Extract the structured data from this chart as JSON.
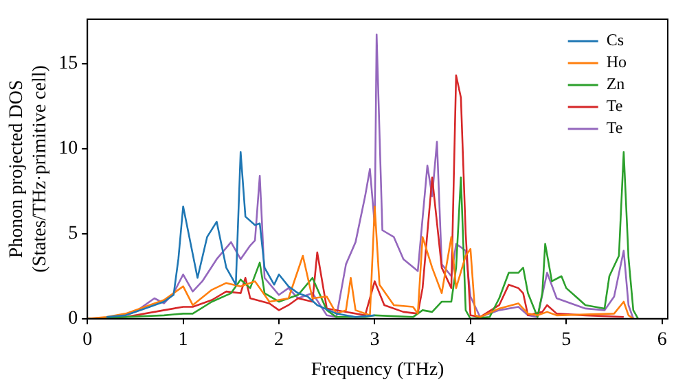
{
  "chart_data": {
    "type": "line",
    "xlabel": "Frequency (THz)",
    "ylabel": "Phonon projected DOS\n(States/THz·primitive cell)",
    "xlim": [
      0,
      6.06
    ],
    "ylim": [
      0,
      17.6
    ],
    "xticks": [
      0,
      1,
      2,
      3,
      4,
      5,
      6
    ],
    "yticks": [
      0,
      5,
      10,
      15
    ],
    "grid": false,
    "legend": "top right",
    "marker": "none",
    "line_style": "solid",
    "series": [
      {
        "name": "Cs",
        "color": "#1f77b4",
        "x": [
          0.2,
          0.4,
          0.6,
          0.8,
          0.9,
          0.95,
          1.0,
          1.05,
          1.15,
          1.25,
          1.35,
          1.45,
          1.55,
          1.6,
          1.65,
          1.75,
          1.8,
          1.85,
          1.95,
          2.0,
          2.1,
          2.2,
          2.3,
          2.4,
          2.6,
          2.8,
          3.0
        ],
        "values": [
          0.1,
          0.2,
          0.6,
          1.0,
          1.4,
          3.5,
          6.6,
          5.2,
          2.4,
          4.8,
          5.7,
          3.0,
          2.0,
          9.8,
          6.0,
          5.5,
          5.6,
          3.0,
          2.0,
          2.6,
          1.9,
          1.5,
          1.3,
          0.8,
          0.3,
          0.1,
          0.2
        ]
      },
      {
        "name": "Ho",
        "color": "#ff7f0e",
        "x": [
          0,
          0.2,
          0.4,
          0.6,
          0.8,
          1.0,
          1.1,
          1.3,
          1.45,
          1.6,
          1.75,
          1.9,
          2.1,
          2.25,
          2.35,
          2.5,
          2.6,
          2.7,
          2.75,
          2.8,
          2.95,
          3.0,
          3.05,
          3.2,
          3.4,
          3.45,
          3.5,
          3.6,
          3.7,
          3.8,
          3.85,
          3.95,
          4.0,
          4.05,
          4.1,
          4.3,
          4.5,
          4.6,
          4.7,
          4.8,
          4.9,
          5.5,
          5.6,
          5.65,
          5.7
        ],
        "values": [
          0,
          0.1,
          0.3,
          0.7,
          1.1,
          1.9,
          0.8,
          1.7,
          2.1,
          1.9,
          2.2,
          1.0,
          1.2,
          3.7,
          1.2,
          1.3,
          0.3,
          0.5,
          2.4,
          0.5,
          0.2,
          6.6,
          2.0,
          0.8,
          0.7,
          0.3,
          4.8,
          3.0,
          1.5,
          4.8,
          1.8,
          3.7,
          4.1,
          0.2,
          0.1,
          0.6,
          0.9,
          0.3,
          0.2,
          0.4,
          0.2,
          0.3,
          1.0,
          0.2,
          0
        ]
      },
      {
        "name": "Zn",
        "color": "#2ca02c",
        "x": [
          0,
          0.4,
          0.8,
          1.0,
          1.1,
          1.3,
          1.5,
          1.6,
          1.7,
          1.8,
          1.85,
          2.0,
          2.2,
          2.35,
          2.5,
          2.6,
          2.9,
          3.0,
          3.4,
          3.5,
          3.6,
          3.7,
          3.8,
          3.85,
          3.9,
          3.95,
          4.0,
          4.2,
          4.3,
          4.4,
          4.5,
          4.55,
          4.6,
          4.7,
          4.75,
          4.78,
          4.85,
          4.95,
          5.0,
          5.1,
          5.2,
          5.3,
          5.4,
          5.45,
          5.55,
          5.6,
          5.65,
          5.7,
          5.75
        ],
        "values": [
          0,
          0.1,
          0.2,
          0.3,
          0.3,
          1.0,
          1.5,
          2.3,
          1.8,
          3.3,
          1.5,
          1.0,
          1.4,
          2.4,
          0.5,
          0.1,
          0.1,
          0.2,
          0.1,
          0.5,
          0.4,
          1.0,
          1.0,
          3.0,
          8.3,
          0.5,
          0,
          0.1,
          1.2,
          2.7,
          2.7,
          3.0,
          1.5,
          0.1,
          1.5,
          4.4,
          2.2,
          2.5,
          1.8,
          1.3,
          0.8,
          0.7,
          0.6,
          2.5,
          3.7,
          9.8,
          3.6,
          0.5,
          0
        ]
      },
      {
        "name": "Te",
        "color": "#d62728",
        "x": [
          0,
          0.4,
          0.8,
          1.0,
          1.1,
          1.3,
          1.45,
          1.6,
          1.65,
          1.7,
          1.9,
          2.0,
          2.1,
          2.2,
          2.35,
          2.4,
          2.5,
          2.9,
          3.0,
          3.1,
          3.3,
          3.45,
          3.5,
          3.6,
          3.7,
          3.8,
          3.85,
          3.9,
          3.95,
          4.0,
          4.1,
          4.3,
          4.4,
          4.5,
          4.55,
          4.6,
          4.75,
          4.8,
          4.9,
          5.2,
          5.6
        ],
        "values": [
          0,
          0.1,
          0.5,
          0.7,
          0.7,
          1.1,
          1.6,
          1.5,
          2.4,
          1.2,
          0.9,
          0.5,
          0.8,
          1.2,
          1.0,
          3.9,
          0.6,
          0.2,
          2.2,
          0.8,
          0.4,
          0.3,
          1.8,
          8.3,
          3.0,
          1.8,
          14.3,
          13.0,
          5.0,
          0.2,
          0.1,
          0.8,
          2.0,
          1.8,
          1.5,
          0.2,
          0.4,
          0.8,
          0.3,
          0.2,
          0.1
        ]
      },
      {
        "name": "Te",
        "color": "#9467bd",
        "x": [
          0,
          0.3,
          0.5,
          0.7,
          0.8,
          0.9,
          1.0,
          1.1,
          1.2,
          1.35,
          1.5,
          1.6,
          1.7,
          1.75,
          1.8,
          1.85,
          2.0,
          2.1,
          2.2,
          2.35,
          2.5,
          2.6,
          2.7,
          2.8,
          2.9,
          2.95,
          3.0,
          3.02,
          3.08,
          3.2,
          3.3,
          3.45,
          3.55,
          3.6,
          3.65,
          3.7,
          3.8,
          3.85,
          3.95,
          4.0,
          4.1,
          4.3,
          4.5,
          4.6,
          4.7,
          4.8,
          4.9,
          5.0,
          5.2,
          5.4,
          5.5,
          5.6,
          5.65,
          5.7
        ],
        "values": [
          0,
          0.1,
          0.4,
          1.2,
          0.9,
          1.5,
          2.6,
          1.6,
          2.2,
          3.5,
          4.5,
          3.5,
          4.3,
          4.6,
          8.4,
          2.4,
          1.4,
          1.8,
          1.2,
          1.5,
          0.2,
          0.1,
          3.2,
          4.5,
          7.2,
          8.8,
          5.5,
          16.7,
          5.2,
          4.8,
          3.5,
          2.8,
          9.0,
          7.2,
          10.4,
          3.2,
          2.5,
          4.4,
          4.0,
          1.3,
          0.1,
          0.5,
          0.7,
          0.2,
          0.1,
          2.7,
          1.2,
          1.0,
          0.6,
          0.5,
          1.3,
          4.0,
          0.8,
          0
        ]
      }
    ]
  }
}
